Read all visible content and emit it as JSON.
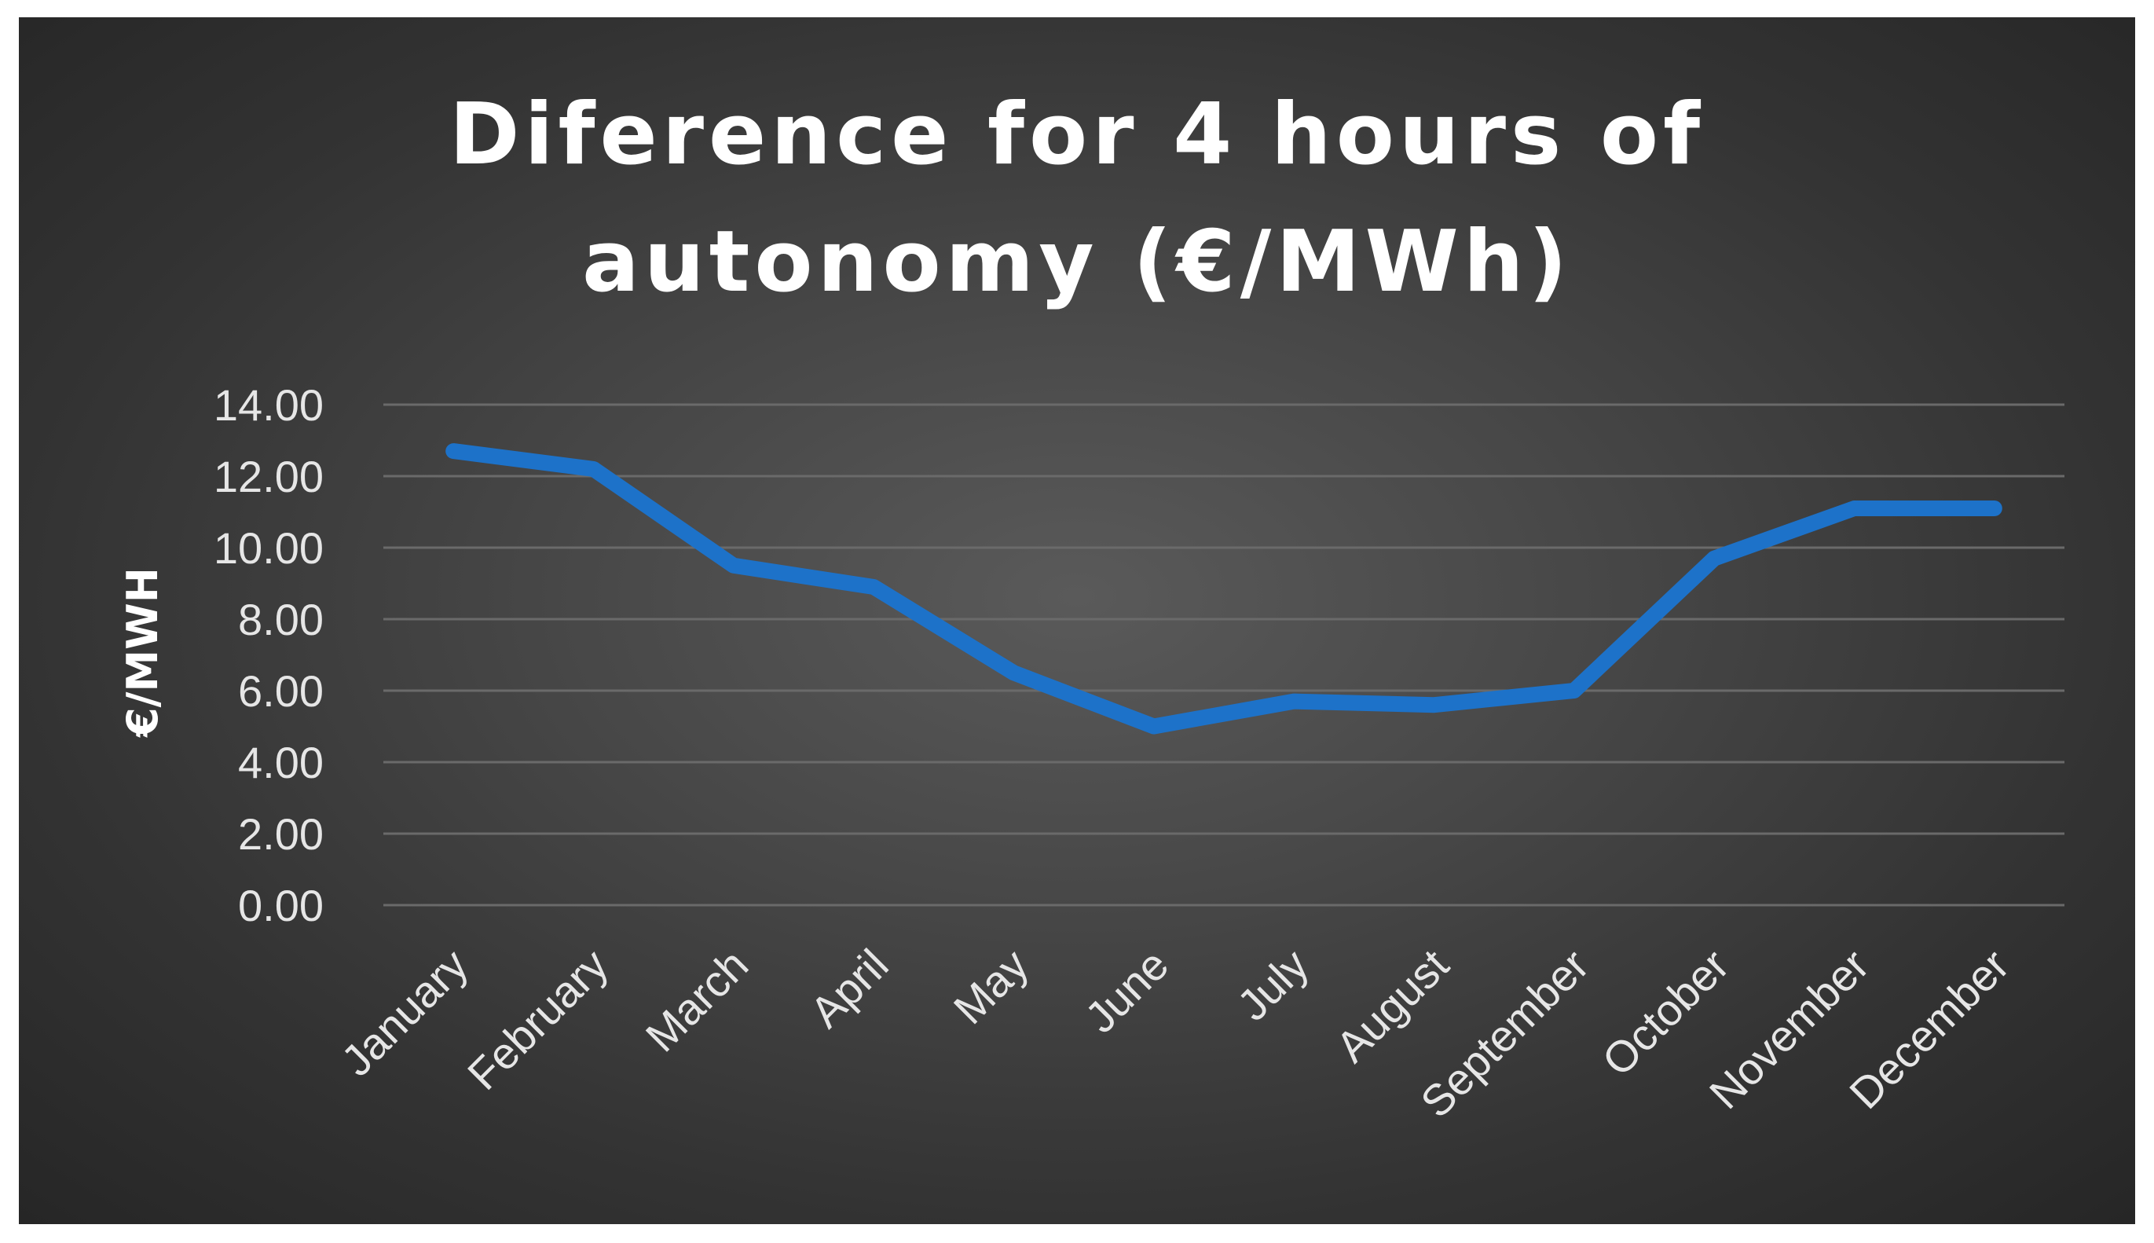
{
  "chart_data": {
    "type": "line",
    "title_lines": [
      "Diference for 4 hours of",
      "autonomy (€/MWh)"
    ],
    "ylabel": "€/MWH",
    "xlabel": "",
    "categories": [
      "January",
      "February",
      "March",
      "April",
      "May",
      "June",
      "July",
      "August",
      "September",
      "October",
      "November",
      "December"
    ],
    "series": [
      {
        "values": [
          12.7,
          12.2,
          9.5,
          8.9,
          6.5,
          5.0,
          5.7,
          5.6,
          6.0,
          9.7,
          11.1,
          11.1
        ],
        "color": "#1d72c9"
      }
    ],
    "ylim": [
      0,
      14
    ],
    "yticks": [
      "0.00",
      "2.00",
      "4.00",
      "6.00",
      "8.00",
      "10.00",
      "12.00",
      "14.00"
    ],
    "grid": true,
    "legend": "none"
  },
  "colors": {
    "line": "#1d72c9",
    "background": "#3a3a3a",
    "text": "#e6e6e6"
  }
}
